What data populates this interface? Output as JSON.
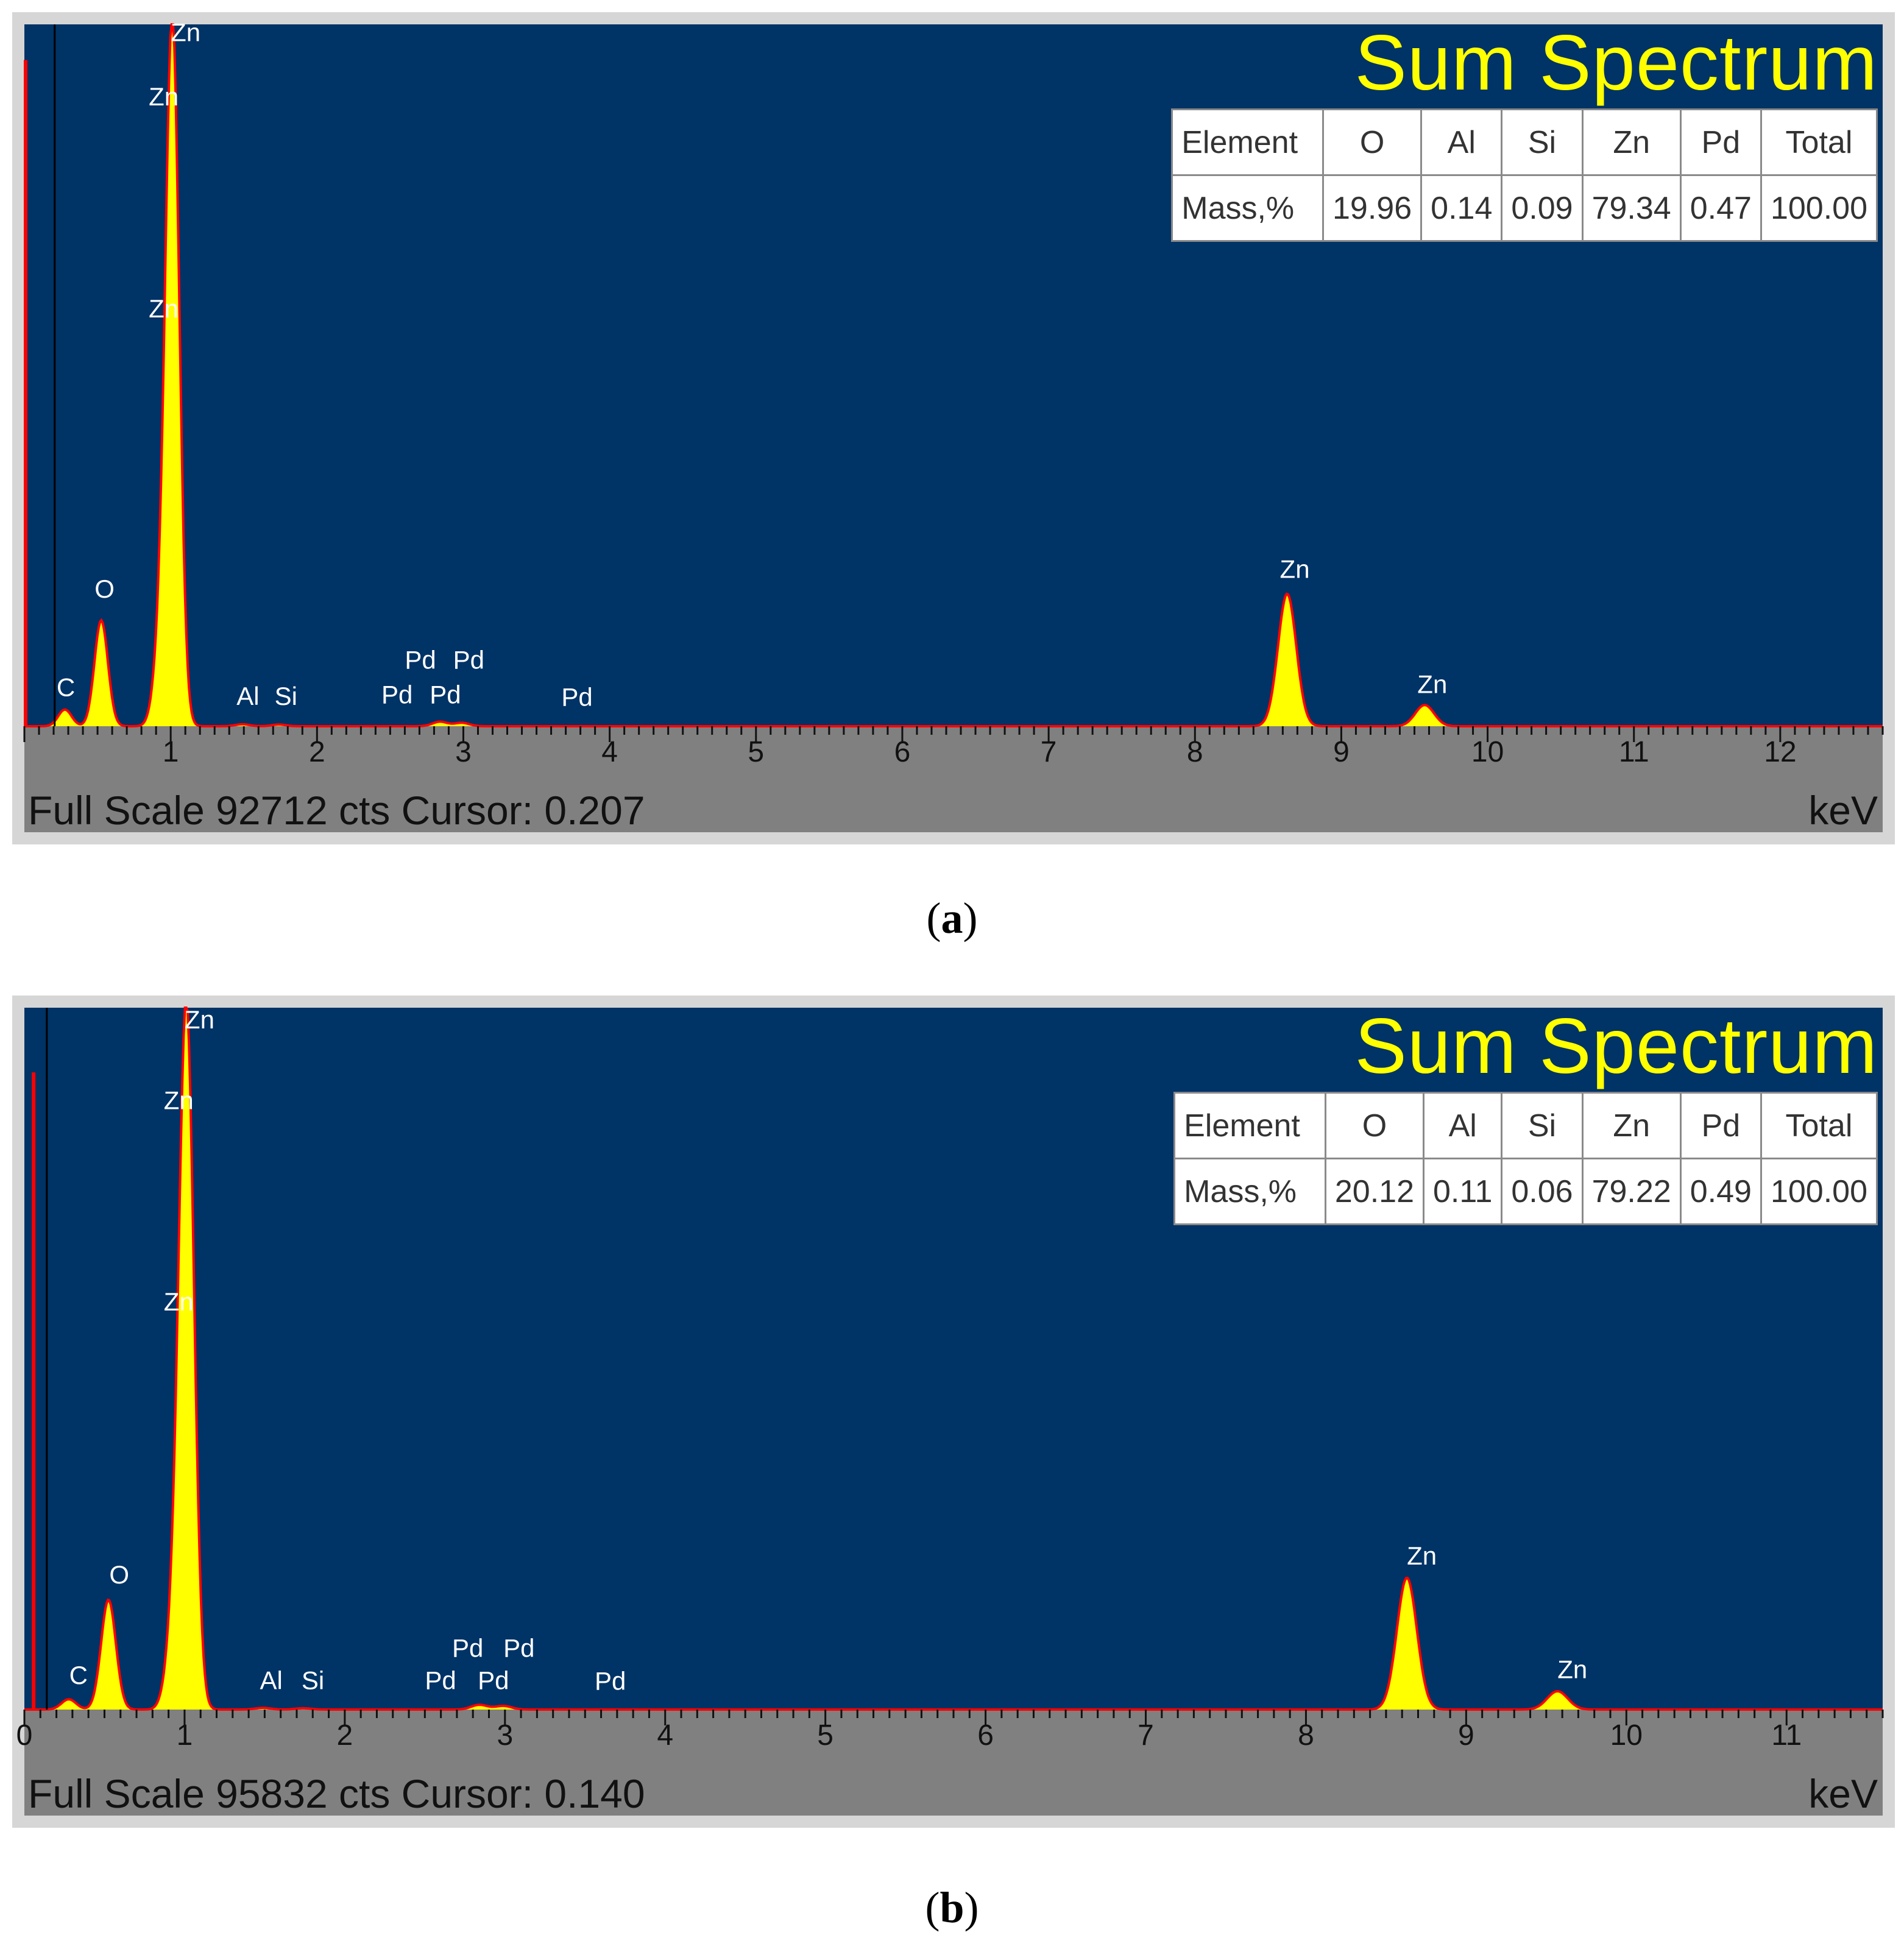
{
  "panels": [
    {
      "id": "a",
      "caption_letter": "a",
      "title": "Sum Spectrum",
      "table": {
        "header": [
          "Element",
          "O",
          "Al",
          "Si",
          "Zn",
          "Pd",
          "Total"
        ],
        "row": [
          "Mass,%",
          "19.96",
          "0.14",
          "0.09",
          "79.34",
          "0.47",
          "100.00"
        ]
      },
      "footer": {
        "full_scale": "Full Scale 92712 cts Cursor: 0.207",
        "unit": "keV"
      }
    },
    {
      "id": "b",
      "caption_letter": "b",
      "title": "Sum Spectrum",
      "table": {
        "header": [
          "Element",
          "O",
          "Al",
          "Si",
          "Zn",
          "Pd",
          "Total"
        ],
        "row": [
          "Mass,%",
          "20.12",
          "0.11",
          "0.06",
          "79.22",
          "0.49",
          "100.00"
        ]
      },
      "footer": {
        "full_scale": "Full Scale 95832 cts Cursor: 0.140",
        "unit": "keV"
      }
    }
  ],
  "colors": {
    "plot_bg": "#003366",
    "frame": "#d6d6d6",
    "axis_bg": "#808080",
    "fill": "#ffff00",
    "line": "#ff0000",
    "label": "#ffffff",
    "title": "#ffff00"
  },
  "chart_data": [
    {
      "type": "area",
      "xlabel": "keV",
      "xlim": [
        0,
        12.7
      ],
      "ylim": [
        0,
        92712
      ],
      "xticks": [
        1,
        2,
        3,
        4,
        5,
        6,
        7,
        8,
        9,
        10,
        11,
        12
      ],
      "cursor_x": 0.207,
      "peaks": [
        {
          "x": 0.277,
          "y": 2200
        },
        {
          "x": 0.525,
          "y": 14000
        },
        {
          "x": 0.93,
          "y": 9000
        },
        {
          "x": 1.012,
          "y": 92000
        },
        {
          "x": 1.49,
          "y": 260
        },
        {
          "x": 1.74,
          "y": 220
        },
        {
          "x": 2.84,
          "y": 600
        },
        {
          "x": 2.99,
          "y": 450
        },
        {
          "x": 8.63,
          "y": 17500
        },
        {
          "x": 9.57,
          "y": 2800
        }
      ],
      "noise_spike": {
        "x": 0.0,
        "y": 88000
      },
      "peak_labels": [
        {
          "text": "Zn",
          "x": 1.0,
          "y": 90500
        },
        {
          "text": "Zn",
          "x": 0.85,
          "y": 82000
        },
        {
          "text": "Zn",
          "x": 0.85,
          "y": 54000
        },
        {
          "text": "O",
          "x": 0.48,
          "y": 17000
        },
        {
          "text": "C",
          "x": 0.22,
          "y": 4000
        },
        {
          "text": "Al",
          "x": 1.45,
          "y": 2800
        },
        {
          "text": "Si",
          "x": 1.71,
          "y": 2800
        },
        {
          "text": "Pd",
          "x": 2.44,
          "y": 3000
        },
        {
          "text": "Pd",
          "x": 2.77,
          "y": 3000
        },
        {
          "text": "Pd",
          "x": 2.6,
          "y": 7600
        },
        {
          "text": "Pd",
          "x": 2.93,
          "y": 7600
        },
        {
          "text": "Pd",
          "x": 3.67,
          "y": 2700
        },
        {
          "text": "Zn",
          "x": 8.58,
          "y": 19600
        },
        {
          "text": "Zn",
          "x": 9.52,
          "y": 4400
        }
      ]
    },
    {
      "type": "area",
      "xlabel": "keV",
      "xlim": [
        0,
        11.6
      ],
      "ylim": [
        0,
        95832
      ],
      "xticks": [
        0,
        1,
        2,
        3,
        4,
        5,
        6,
        7,
        8,
        9,
        10,
        11
      ],
      "cursor_x": 0.14,
      "peaks": [
        {
          "x": 0.277,
          "y": 1400
        },
        {
          "x": 0.525,
          "y": 15000
        },
        {
          "x": 0.93,
          "y": 9000
        },
        {
          "x": 1.012,
          "y": 95000
        },
        {
          "x": 1.49,
          "y": 230
        },
        {
          "x": 1.74,
          "y": 180
        },
        {
          "x": 2.84,
          "y": 650
        },
        {
          "x": 2.99,
          "y": 500
        },
        {
          "x": 8.63,
          "y": 18000
        },
        {
          "x": 9.57,
          "y": 2500
        }
      ],
      "noise_spike": {
        "x": 0.05,
        "y": 87000
      },
      "peak_labels": [
        {
          "text": "Zn",
          "x": 1.0,
          "y": 93000
        },
        {
          "text": "Zn",
          "x": 0.87,
          "y": 82000
        },
        {
          "text": "Zn",
          "x": 0.87,
          "y": 54500
        },
        {
          "text": "O",
          "x": 0.53,
          "y": 17200
        },
        {
          "text": "C",
          "x": 0.28,
          "y": 3500
        },
        {
          "text": "Al",
          "x": 1.47,
          "y": 2800
        },
        {
          "text": "Si",
          "x": 1.73,
          "y": 2800
        },
        {
          "text": "Pd",
          "x": 2.5,
          "y": 2800
        },
        {
          "text": "Pd",
          "x": 2.83,
          "y": 2800
        },
        {
          "text": "Pd",
          "x": 2.67,
          "y": 7200
        },
        {
          "text": "Pd",
          "x": 2.99,
          "y": 7200
        },
        {
          "text": "Pd",
          "x": 3.56,
          "y": 2700
        },
        {
          "text": "Zn",
          "x": 8.63,
          "y": 19800
        },
        {
          "text": "Zn",
          "x": 9.57,
          "y": 4300
        }
      ]
    }
  ]
}
